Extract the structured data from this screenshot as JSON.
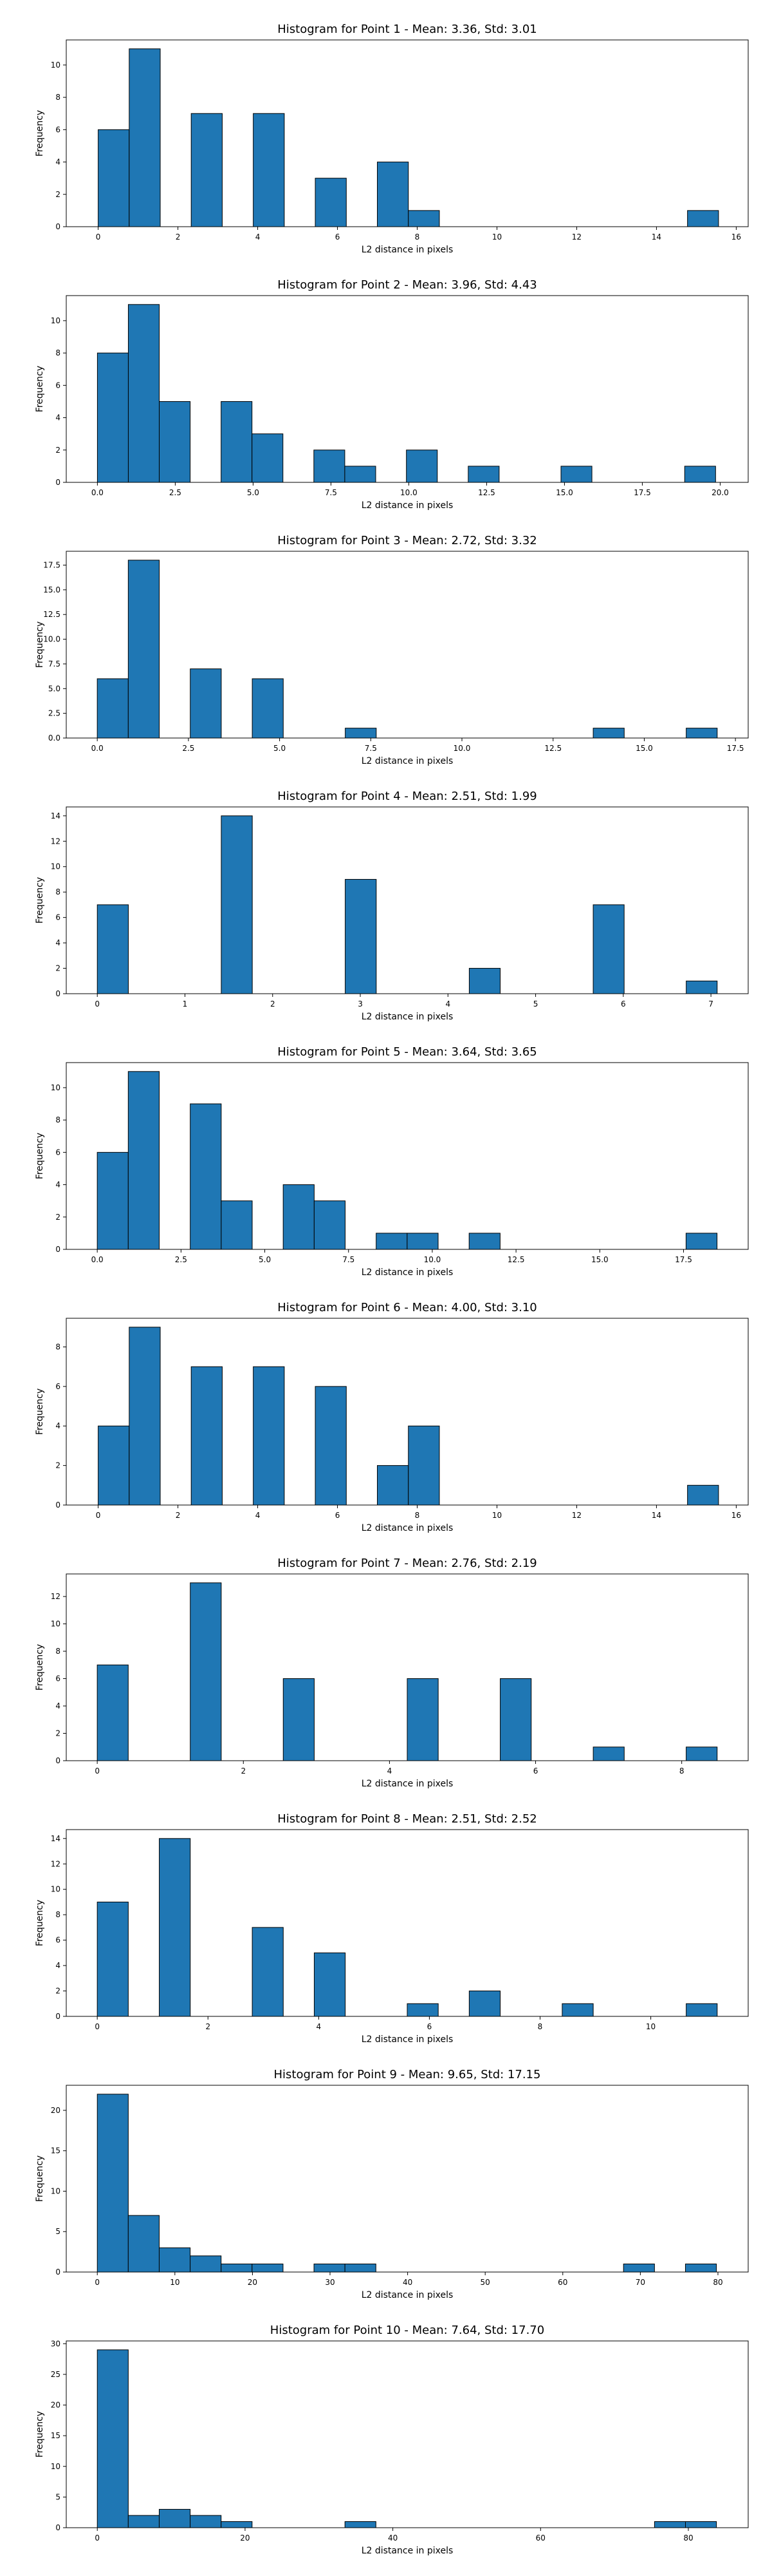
{
  "style": {
    "bar_fill": "#1f77b4",
    "bar_edge": "#000000",
    "background": "#ffffff"
  },
  "chart_data": [
    {
      "type": "bar",
      "title": "Histogram for Point 1 - Mean: 3.36, Std: 3.01",
      "xlabel": "L2 distance in pixels",
      "ylabel": "Frequency",
      "xlim": [
        -0.8,
        16.3
      ],
      "ylim": [
        0,
        11.55
      ],
      "xticks": [
        0,
        2,
        4,
        6,
        8,
        10,
        12,
        14,
        16
      ],
      "xtick_labels": [
        "0",
        "2",
        "4",
        "6",
        "8",
        "10",
        "12",
        "14",
        "16"
      ],
      "yticks": [
        0,
        2,
        4,
        6,
        8,
        10
      ],
      "ytick_labels": [
        "0",
        "2",
        "4",
        "6",
        "8",
        "10"
      ],
      "bins": [
        {
          "x0": 0.0,
          "x1": 0.778,
          "count": 6
        },
        {
          "x0": 0.778,
          "x1": 1.556,
          "count": 11
        },
        {
          "x0": 2.333,
          "x1": 3.111,
          "count": 7
        },
        {
          "x0": 3.889,
          "x1": 4.667,
          "count": 7
        },
        {
          "x0": 5.444,
          "x1": 6.222,
          "count": 3
        },
        {
          "x0": 7.0,
          "x1": 7.778,
          "count": 4
        },
        {
          "x0": 7.778,
          "x1": 8.556,
          "count": 1
        },
        {
          "x0": 14.778,
          "x1": 15.556,
          "count": 1
        }
      ],
      "grid": false
    },
    {
      "type": "bar",
      "title": "Histogram for Point 2 - Mean: 3.96, Std: 4.43",
      "xlabel": "L2 distance in pixels",
      "ylabel": "Frequency",
      "xlim": [
        -1.0,
        20.9
      ],
      "ylim": [
        0,
        11.55
      ],
      "xticks": [
        0.0,
        2.5,
        5.0,
        7.5,
        10.0,
        12.5,
        15.0,
        17.5,
        20.0
      ],
      "xtick_labels": [
        "0.0",
        "2.5",
        "5.0",
        "7.5",
        "10.0",
        "12.5",
        "15.0",
        "17.5",
        "20.0"
      ],
      "yticks": [
        0,
        2,
        4,
        6,
        8,
        10
      ],
      "ytick_labels": [
        "0",
        "2",
        "4",
        "6",
        "8",
        "10"
      ],
      "bins": [
        {
          "x0": 0.0,
          "x1": 0.993,
          "count": 8
        },
        {
          "x0": 0.993,
          "x1": 1.986,
          "count": 11
        },
        {
          "x0": 1.986,
          "x1": 2.979,
          "count": 5
        },
        {
          "x0": 3.972,
          "x1": 4.965,
          "count": 5
        },
        {
          "x0": 4.965,
          "x1": 5.958,
          "count": 3
        },
        {
          "x0": 6.951,
          "x1": 7.944,
          "count": 2
        },
        {
          "x0": 7.944,
          "x1": 8.937,
          "count": 1
        },
        {
          "x0": 9.923,
          "x1": 10.916,
          "count": 2
        },
        {
          "x0": 11.909,
          "x1": 12.902,
          "count": 1
        },
        {
          "x0": 14.888,
          "x1": 15.881,
          "count": 1
        },
        {
          "x0": 18.86,
          "x1": 19.853,
          "count": 1
        }
      ],
      "grid": false
    },
    {
      "type": "bar",
      "title": "Histogram for Point 3 - Mean: 2.72, Std: 3.32",
      "xlabel": "L2 distance in pixels",
      "ylabel": "Frequency",
      "xlim": [
        -0.85,
        17.85
      ],
      "ylim": [
        0,
        18.9
      ],
      "xticks": [
        0.0,
        2.5,
        5.0,
        7.5,
        10.0,
        12.5,
        15.0,
        17.5
      ],
      "xtick_labels": [
        "0.0",
        "2.5",
        "5.0",
        "7.5",
        "10.0",
        "12.5",
        "15.0",
        "17.5"
      ],
      "yticks": [
        0.0,
        2.5,
        5.0,
        7.5,
        10.0,
        12.5,
        15.0,
        17.5
      ],
      "ytick_labels": [
        "0.0",
        "2.5",
        "5.0",
        "7.5",
        "10.0",
        "12.5",
        "15.0",
        "17.5"
      ],
      "bins": [
        {
          "x0": 0.0,
          "x1": 0.85,
          "count": 6
        },
        {
          "x0": 0.85,
          "x1": 1.7,
          "count": 18
        },
        {
          "x0": 2.55,
          "x1": 3.4,
          "count": 7
        },
        {
          "x0": 4.25,
          "x1": 5.1,
          "count": 6
        },
        {
          "x0": 6.8,
          "x1": 7.65,
          "count": 1
        },
        {
          "x0": 13.6,
          "x1": 14.45,
          "count": 1
        },
        {
          "x0": 16.15,
          "x1": 17.0,
          "count": 1
        }
      ],
      "grid": false
    },
    {
      "type": "bar",
      "title": "Histogram for Point 4 - Mean: 2.51, Std: 1.99",
      "xlabel": "L2 distance in pixels",
      "ylabel": "Frequency",
      "xlim": [
        -0.354,
        7.425
      ],
      "ylim": [
        0,
        14.7
      ],
      "xticks": [
        0,
        1,
        2,
        3,
        4,
        5,
        6,
        7
      ],
      "xtick_labels": [
        "0",
        "1",
        "2",
        "3",
        "4",
        "5",
        "6",
        "7"
      ],
      "yticks": [
        0,
        2,
        4,
        6,
        8,
        10,
        12,
        14
      ],
      "ytick_labels": [
        "0",
        "2",
        "4",
        "6",
        "8",
        "10",
        "12",
        "14"
      ],
      "bins": [
        {
          "x0": 0.0,
          "x1": 0.354,
          "count": 7
        },
        {
          "x0": 1.414,
          "x1": 1.768,
          "count": 14
        },
        {
          "x0": 2.828,
          "x1": 3.182,
          "count": 9
        },
        {
          "x0": 4.243,
          "x1": 4.596,
          "count": 2
        },
        {
          "x0": 5.657,
          "x1": 6.01,
          "count": 7
        },
        {
          "x0": 6.718,
          "x1": 7.071,
          "count": 1
        }
      ],
      "grid": false
    },
    {
      "type": "bar",
      "title": "Histogram for Point 5 - Mean: 3.64, Std: 3.65",
      "xlabel": "L2 distance in pixels",
      "ylabel": "Frequency",
      "xlim": [
        -0.925,
        19.43
      ],
      "ylim": [
        0,
        11.55
      ],
      "xticks": [
        0.0,
        2.5,
        5.0,
        7.5,
        10.0,
        12.5,
        15.0,
        17.5
      ],
      "xtick_labels": [
        "0.0",
        "2.5",
        "5.0",
        "7.5",
        "10.0",
        "12.5",
        "15.0",
        "17.5"
      ],
      "yticks": [
        0,
        2,
        4,
        6,
        8,
        10
      ],
      "ytick_labels": [
        "0",
        "2",
        "4",
        "6",
        "8",
        "10"
      ],
      "bins": [
        {
          "x0": 0.0,
          "x1": 0.925,
          "count": 6
        },
        {
          "x0": 0.925,
          "x1": 1.85,
          "count": 11
        },
        {
          "x0": 2.775,
          "x1": 3.7,
          "count": 9
        },
        {
          "x0": 3.7,
          "x1": 4.625,
          "count": 3
        },
        {
          "x0": 5.55,
          "x1": 6.475,
          "count": 4
        },
        {
          "x0": 6.475,
          "x1": 7.4,
          "count": 3
        },
        {
          "x0": 8.325,
          "x1": 9.25,
          "count": 1
        },
        {
          "x0": 9.25,
          "x1": 10.175,
          "count": 1
        },
        {
          "x0": 11.1,
          "x1": 12.025,
          "count": 1
        },
        {
          "x0": 17.575,
          "x1": 18.5,
          "count": 1
        }
      ],
      "grid": false
    },
    {
      "type": "bar",
      "title": "Histogram for Point 6 - Mean: 4.00, Std: 3.10",
      "xlabel": "L2 distance in pixels",
      "ylabel": "Frequency",
      "xlim": [
        -0.8,
        16.3
      ],
      "ylim": [
        0,
        9.45
      ],
      "xticks": [
        0,
        2,
        4,
        6,
        8,
        10,
        12,
        14,
        16
      ],
      "xtick_labels": [
        "0",
        "2",
        "4",
        "6",
        "8",
        "10",
        "12",
        "14",
        "16"
      ],
      "yticks": [
        0,
        2,
        4,
        6,
        8
      ],
      "ytick_labels": [
        "0",
        "2",
        "4",
        "6",
        "8"
      ],
      "bins": [
        {
          "x0": 0.0,
          "x1": 0.778,
          "count": 4
        },
        {
          "x0": 0.778,
          "x1": 1.556,
          "count": 9
        },
        {
          "x0": 2.333,
          "x1": 3.111,
          "count": 7
        },
        {
          "x0": 3.889,
          "x1": 4.667,
          "count": 7
        },
        {
          "x0": 5.444,
          "x1": 6.222,
          "count": 6
        },
        {
          "x0": 7.0,
          "x1": 7.778,
          "count": 2
        },
        {
          "x0": 7.778,
          "x1": 8.556,
          "count": 4
        },
        {
          "x0": 14.778,
          "x1": 15.556,
          "count": 1
        }
      ],
      "grid": false
    },
    {
      "type": "bar",
      "title": "Histogram for Point 7 - Mean: 2.76, Std: 2.19",
      "xlabel": "L2 distance in pixels",
      "ylabel": "Frequency",
      "xlim": [
        -0.424,
        8.91
      ],
      "ylim": [
        0,
        13.65
      ],
      "xticks": [
        0,
        2,
        4,
        6,
        8
      ],
      "xtick_labels": [
        "0",
        "2",
        "4",
        "6",
        "8"
      ],
      "yticks": [
        0,
        2,
        4,
        6,
        8,
        10,
        12
      ],
      "ytick_labels": [
        "0",
        "2",
        "4",
        "6",
        "8",
        "10",
        "12"
      ],
      "bins": [
        {
          "x0": 0.0,
          "x1": 0.424,
          "count": 7
        },
        {
          "x0": 1.273,
          "x1": 1.697,
          "count": 13
        },
        {
          "x0": 2.546,
          "x1": 2.97,
          "count": 6
        },
        {
          "x0": 4.243,
          "x1": 4.667,
          "count": 6
        },
        {
          "x0": 5.516,
          "x1": 5.94,
          "count": 6
        },
        {
          "x0": 6.789,
          "x1": 7.213,
          "count": 1
        },
        {
          "x0": 8.061,
          "x1": 8.485,
          "count": 1
        }
      ],
      "grid": false
    },
    {
      "type": "bar",
      "title": "Histogram for Point 8 - Mean: 2.51, Std: 2.52",
      "xlabel": "L2 distance in pixels",
      "ylabel": "Frequency",
      "xlim": [
        -0.56,
        11.76
      ],
      "ylim": [
        0,
        14.7
      ],
      "xticks": [
        0,
        2,
        4,
        6,
        8,
        10
      ],
      "xtick_labels": [
        "0",
        "2",
        "4",
        "6",
        "8",
        "10"
      ],
      "yticks": [
        0,
        2,
        4,
        6,
        8,
        10,
        12,
        14
      ],
      "ytick_labels": [
        "0",
        "2",
        "4",
        "6",
        "8",
        "10",
        "12",
        "14"
      ],
      "bins": [
        {
          "x0": 0.0,
          "x1": 0.56,
          "count": 9
        },
        {
          "x0": 1.12,
          "x1": 1.68,
          "count": 14
        },
        {
          "x0": 2.8,
          "x1": 3.36,
          "count": 7
        },
        {
          "x0": 3.92,
          "x1": 4.48,
          "count": 5
        },
        {
          "x0": 5.6,
          "x1": 6.16,
          "count": 1
        },
        {
          "x0": 6.72,
          "x1": 7.28,
          "count": 2
        },
        {
          "x0": 8.4,
          "x1": 8.96,
          "count": 1
        },
        {
          "x0": 10.64,
          "x1": 11.2,
          "count": 1
        }
      ],
      "grid": false
    },
    {
      "type": "bar",
      "title": "Histogram for Point 9 - Mean: 9.65, Std: 17.15",
      "xlabel": "L2 distance in pixels",
      "ylabel": "Frequency",
      "xlim": [
        -4.0,
        83.9
      ],
      "ylim": [
        0,
        23.1
      ],
      "xticks": [
        0,
        10,
        20,
        30,
        40,
        50,
        60,
        70,
        80
      ],
      "xtick_labels": [
        "0",
        "10",
        "20",
        "30",
        "40",
        "50",
        "60",
        "70",
        "80"
      ],
      "yticks": [
        0,
        5,
        10,
        15,
        20
      ],
      "ytick_labels": [
        "0",
        "5",
        "10",
        "15",
        "20"
      ],
      "bins": [
        {
          "x0": 0.0,
          "x1": 3.99,
          "count": 22
        },
        {
          "x0": 3.99,
          "x1": 7.98,
          "count": 7
        },
        {
          "x0": 7.98,
          "x1": 11.97,
          "count": 3
        },
        {
          "x0": 11.97,
          "x1": 15.96,
          "count": 2
        },
        {
          "x0": 15.96,
          "x1": 19.95,
          "count": 1
        },
        {
          "x0": 19.95,
          "x1": 23.94,
          "count": 1
        },
        {
          "x0": 27.93,
          "x1": 31.92,
          "count": 1
        },
        {
          "x0": 31.92,
          "x1": 35.91,
          "count": 1
        },
        {
          "x0": 67.83,
          "x1": 71.82,
          "count": 1
        },
        {
          "x0": 75.81,
          "x1": 79.8,
          "count": 1
        }
      ],
      "grid": false
    },
    {
      "type": "bar",
      "title": "Histogram for Point 10 - Mean: 7.64, Std: 17.70",
      "xlabel": "L2 distance in pixels",
      "ylabel": "Frequency",
      "xlim": [
        -4.2,
        88.1
      ],
      "ylim": [
        0,
        30.45
      ],
      "xticks": [
        0,
        20,
        40,
        60,
        80
      ],
      "xtick_labels": [
        "0",
        "20",
        "40",
        "60",
        "80"
      ],
      "yticks": [
        0,
        5,
        10,
        15,
        20,
        25,
        30
      ],
      "ytick_labels": [
        "0",
        "5",
        "10",
        "15",
        "20",
        "25",
        "30"
      ],
      "bins": [
        {
          "x0": 0.0,
          "x1": 4.19,
          "count": 29
        },
        {
          "x0": 4.19,
          "x1": 8.38,
          "count": 2
        },
        {
          "x0": 8.38,
          "x1": 12.57,
          "count": 3
        },
        {
          "x0": 12.57,
          "x1": 16.76,
          "count": 2
        },
        {
          "x0": 16.76,
          "x1": 20.95,
          "count": 1
        },
        {
          "x0": 33.52,
          "x1": 37.71,
          "count": 1
        },
        {
          "x0": 75.42,
          "x1": 79.61,
          "count": 1
        },
        {
          "x0": 79.61,
          "x1": 83.8,
          "count": 1
        }
      ],
      "grid": false
    }
  ]
}
